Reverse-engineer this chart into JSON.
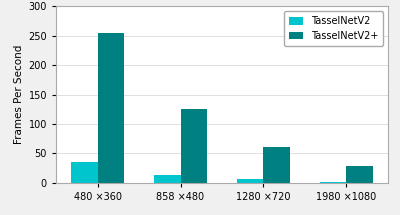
{
  "categories": [
    "480 ×360",
    "858 ×480",
    "1280 ×720",
    "1980 ×1080"
  ],
  "tasselnetv2_values": [
    35,
    13,
    6,
    2
  ],
  "tasselnetv2plus_values": [
    255,
    125,
    60,
    28
  ],
  "color_v2": "#00C5CD",
  "color_v2plus": "#008080",
  "ylabel": "Frames Per Second",
  "ylim": [
    0,
    300
  ],
  "yticks": [
    0,
    50,
    100,
    150,
    200,
    250,
    300
  ],
  "legend_labels": [
    "TasselNetV2",
    "TasselNetV2+"
  ],
  "bar_width": 0.32,
  "figure_facecolor": "#f0f0f0",
  "axes_facecolor": "#ffffff"
}
